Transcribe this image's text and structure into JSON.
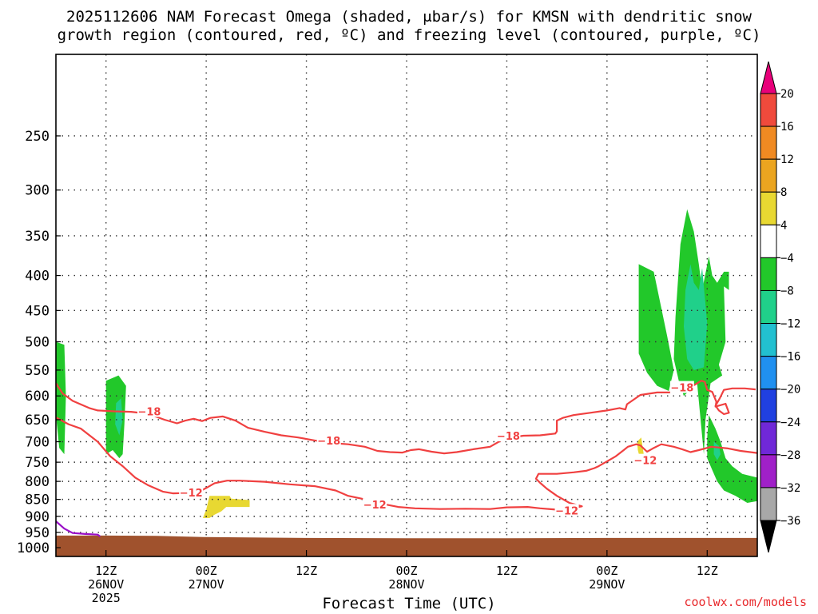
{
  "chart_data": {
    "type": "time-height cross section",
    "title_line1": "2025112606 NAM Forecast Omega (shaded, μbar/s) for KMSN with dendritic snow",
    "title_line2": "growth region (contoured, red, ºC) and freezing level (contoured, purple, ºC)",
    "xlabel": "Forecast Time (UTC)",
    "credit": "coolwx.com/models",
    "y_axis": {
      "scale": "log-pressure",
      "units": "hPa",
      "range": [
        1030,
        190
      ],
      "tick_labels": [
        "250",
        "300",
        "350",
        "400",
        "450",
        "500",
        "550",
        "600",
        "650",
        "700",
        "750",
        "800",
        "850",
        "900",
        "950",
        "1000"
      ],
      "grid": "dotted"
    },
    "x_axis": {
      "range_hours": [
        0,
        84
      ],
      "ticks": [
        {
          "hour": 6,
          "label1": "12Z",
          "label2": "26NOV",
          "label3": "2025"
        },
        {
          "hour": 18,
          "label1": "00Z",
          "label2": "27NOV",
          "label3": ""
        },
        {
          "hour": 30,
          "label1": "12Z",
          "label2": "",
          "label3": ""
        },
        {
          "hour": 42,
          "label1": "00Z",
          "label2": "28NOV",
          "label3": ""
        },
        {
          "hour": 54,
          "label1": "12Z",
          "label2": "",
          "label3": ""
        },
        {
          "hour": 66,
          "label1": "00Z",
          "label2": "29NOV",
          "label3": ""
        },
        {
          "hour": 78,
          "label1": "12Z",
          "label2": "",
          "label3": ""
        }
      ],
      "grid": "dotted"
    },
    "colorbar": {
      "labels": [
        "20",
        "16",
        "12",
        "8",
        "4",
        "−4",
        "−8",
        "−12",
        "−16",
        "−20",
        "−24",
        "−28",
        "−32",
        "−36"
      ],
      "colors": {
        "above_20": "#e8007a",
        "16_20": "#f04a3c",
        "12_16": "#f08a22",
        "8_12": "#eba520",
        "4_8": "#e8d832",
        "neg4_4": "#ffffff",
        "neg8_neg4": "#22c82a",
        "neg12_neg8": "#20d08a",
        "neg16_neg12": "#22c0d0",
        "neg20_neg16": "#2090f0",
        "neg24_neg20": "#2040e0",
        "neg28_neg24": "#7028d8",
        "neg32_neg28": "#a020c8",
        "neg36_neg32": "#a8a8a8",
        "below_neg36": "#000000"
      }
    },
    "omega_regions": [
      {
        "name": "green-early-left",
        "level": "-8..-4",
        "points": [
          [
            0.0,
            500
          ],
          [
            1.0,
            505
          ],
          [
            1.2,
            600
          ],
          [
            1.0,
            730
          ],
          [
            0.4,
            715
          ],
          [
            0.0,
            640
          ]
        ]
      },
      {
        "name": "green-early-12z",
        "level": "-8..-4",
        "points": [
          [
            6.0,
            570
          ],
          [
            7.5,
            560
          ],
          [
            8.4,
            580
          ],
          [
            8.2,
            660
          ],
          [
            8.0,
            730
          ],
          [
            7.6,
            740
          ],
          [
            6.8,
            720
          ],
          [
            6.0,
            730
          ]
        ]
      },
      {
        "name": "teal-early-12z",
        "level": "-12..-8",
        "points": [
          [
            7.2,
            615
          ],
          [
            7.8,
            605
          ],
          [
            8.0,
            650
          ],
          [
            7.6,
            685
          ],
          [
            7.1,
            660
          ]
        ]
      },
      {
        "name": "yellow-day2",
        "level": "4..8",
        "points": [
          [
            17.6,
            905
          ],
          [
            18.0,
            880
          ],
          [
            18.4,
            840
          ],
          [
            20.8,
            840
          ],
          [
            21.0,
            848
          ],
          [
            23.2,
            852
          ],
          [
            23.2,
            872
          ],
          [
            20.4,
            872
          ],
          [
            19.8,
            885
          ],
          [
            19.0,
            895
          ],
          [
            18.4,
            905
          ]
        ]
      },
      {
        "name": "yellow-small-29nov",
        "level": "4..8",
        "points": [
          [
            69.6,
            700
          ],
          [
            70.1,
            690
          ],
          [
            70.4,
            730
          ],
          [
            70.0,
            745
          ],
          [
            69.7,
            720
          ]
        ]
      },
      {
        "name": "green-upper-plume-a",
        "level": "-8..-4",
        "points": [
          [
            69.8,
            385
          ],
          [
            71.6,
            395
          ],
          [
            73.2,
            490
          ],
          [
            74.0,
            550
          ],
          [
            73.4,
            590
          ],
          [
            72.0,
            580
          ],
          [
            70.8,
            555
          ],
          [
            69.8,
            520
          ]
        ]
      },
      {
        "name": "green-upper-plume-b",
        "level": "-8..-4",
        "points": [
          [
            74.2,
            460
          ],
          [
            74.8,
            360
          ],
          [
            75.6,
            320
          ],
          [
            76.4,
            345
          ],
          [
            77.0,
            385
          ],
          [
            77.4,
            420
          ],
          [
            78.2,
            375
          ],
          [
            78.6,
            400
          ],
          [
            79.2,
            410
          ],
          [
            80.0,
            395
          ],
          [
            80.6,
            395
          ],
          [
            80.6,
            420
          ],
          [
            80.0,
            415
          ],
          [
            80.2,
            500
          ],
          [
            79.4,
            540
          ],
          [
            79.8,
            560
          ],
          [
            78.4,
            575
          ],
          [
            77.8,
            650
          ],
          [
            77.6,
            730
          ],
          [
            76.8,
            575
          ],
          [
            75.2,
            600
          ],
          [
            74.6,
            570
          ],
          [
            74.0,
            530
          ]
        ]
      },
      {
        "name": "teal-upper-plume",
        "level": "-12..-8",
        "points": [
          [
            75.4,
            420
          ],
          [
            76.0,
            385
          ],
          [
            76.4,
            410
          ],
          [
            77.0,
            420
          ],
          [
            77.4,
            390
          ],
          [
            78.0,
            470
          ],
          [
            77.6,
            545
          ],
          [
            76.4,
            550
          ],
          [
            75.6,
            530
          ],
          [
            75.2,
            475
          ]
        ]
      },
      {
        "name": "green-lower-right",
        "level": "-8..-4",
        "points": [
          [
            78.2,
            640
          ],
          [
            79.0,
            670
          ],
          [
            79.6,
            700
          ],
          [
            80.2,
            740
          ],
          [
            81.0,
            760
          ],
          [
            82.2,
            780
          ],
          [
            84.0,
            790
          ],
          [
            84.0,
            855
          ],
          [
            82.8,
            860
          ],
          [
            81.4,
            840
          ],
          [
            80.0,
            825
          ],
          [
            79.2,
            800
          ],
          [
            78.6,
            770
          ],
          [
            78.0,
            740
          ],
          [
            78.0,
            690
          ]
        ]
      },
      {
        "name": "teal-lower-right",
        "level": "-12..-8",
        "points": [
          [
            78.8,
            700
          ],
          [
            79.4,
            710
          ],
          [
            79.6,
            730
          ],
          [
            79.2,
            745
          ],
          [
            78.8,
            730
          ]
        ]
      }
    ],
    "contours": [
      {
        "name": "minus-18-contour",
        "color": "#f04040",
        "label": "−18",
        "points": [
          [
            0,
            575
          ],
          [
            0.8,
            595
          ],
          [
            2.0,
            610
          ],
          [
            4.0,
            625
          ],
          [
            5.0,
            630
          ],
          [
            7.0,
            632
          ],
          [
            9.0,
            633
          ],
          [
            11.0,
            637
          ],
          [
            13.0,
            650
          ],
          [
            14.5,
            658
          ],
          [
            15.5,
            652
          ],
          [
            16.5,
            648
          ],
          [
            17.5,
            653
          ],
          [
            18.5,
            646
          ],
          [
            20.0,
            643
          ],
          [
            21.5,
            652
          ],
          [
            23.0,
            668
          ],
          [
            25.0,
            677
          ],
          [
            27.0,
            685
          ],
          [
            29.0,
            690
          ],
          [
            31.0,
            697
          ],
          [
            33.0,
            703
          ],
          [
            35.0,
            706
          ],
          [
            37.0,
            712
          ],
          [
            38.5,
            722
          ],
          [
            40.0,
            725
          ],
          [
            41.5,
            726
          ],
          [
            42.5,
            720
          ],
          [
            43.5,
            718
          ],
          [
            45.0,
            724
          ],
          [
            46.5,
            728
          ],
          [
            48.0,
            725
          ],
          [
            50.0,
            718
          ],
          [
            52.0,
            712
          ],
          [
            53.5,
            695
          ],
          [
            54.5,
            690
          ],
          [
            56.0,
            686
          ],
          [
            58.0,
            685
          ],
          [
            59.8,
            681
          ],
          [
            60.0,
            676
          ],
          [
            60.0,
            652
          ],
          [
            60.7,
            646
          ],
          [
            62.0,
            640
          ],
          [
            64.0,
            635
          ],
          [
            66.0,
            630
          ],
          [
            67.5,
            625
          ],
          [
            68.2,
            628
          ],
          [
            68.4,
            617
          ],
          [
            70.0,
            598
          ],
          [
            72.0,
            593
          ],
          [
            73.5,
            593
          ],
          [
            74.6,
            586
          ],
          [
            75.4,
            585
          ],
          [
            76.0,
            580
          ],
          [
            76.5,
            578
          ],
          [
            77.3,
            570
          ],
          [
            77.7,
            572
          ],
          [
            78.0,
            588
          ],
          [
            78.6,
            592
          ],
          [
            79.1,
            612
          ],
          [
            79.0,
            622
          ],
          [
            80.2,
            616
          ],
          [
            80.6,
            635
          ],
          [
            80.0,
            638
          ],
          [
            79.4,
            630
          ],
          [
            79.0,
            620
          ],
          [
            79.5,
            605
          ],
          [
            80.0,
            588
          ],
          [
            81.0,
            585
          ],
          [
            82.5,
            585
          ],
          [
            83.8,
            587
          ]
        ]
      },
      {
        "name": "minus-12-contour",
        "color": "#f04040",
        "label": "−12",
        "points": [
          [
            0,
            645
          ],
          [
            1.5,
            660
          ],
          [
            3.0,
            670
          ],
          [
            5.0,
            700
          ],
          [
            6.5,
            735
          ],
          [
            8.0,
            760
          ],
          [
            9.5,
            790
          ],
          [
            11.0,
            810
          ],
          [
            12.8,
            828
          ],
          [
            14.0,
            833
          ],
          [
            15.5,
            832
          ],
          [
            17.0,
            830
          ],
          [
            18.0,
            818
          ],
          [
            19.0,
            805
          ],
          [
            20.5,
            798
          ],
          [
            22.0,
            798
          ],
          [
            25.0,
            801
          ],
          [
            28.0,
            808
          ],
          [
            31.0,
            813
          ],
          [
            33.5,
            825
          ],
          [
            35.0,
            840
          ],
          [
            37.0,
            850
          ],
          [
            38.0,
            857
          ],
          [
            39.5,
            865
          ],
          [
            41.0,
            872
          ],
          [
            43.0,
            876
          ],
          [
            46.0,
            878
          ],
          [
            49.0,
            877
          ],
          [
            52.0,
            878
          ],
          [
            54.0,
            873
          ],
          [
            56.5,
            872
          ],
          [
            58.0,
            876
          ],
          [
            60.0,
            880
          ],
          [
            62.0,
            875
          ],
          [
            63.0,
            870
          ],
          [
            61.5,
            860
          ],
          [
            60.0,
            840
          ],
          [
            58.8,
            820
          ],
          [
            58.0,
            804
          ],
          [
            57.5,
            793
          ],
          [
            57.8,
            780
          ],
          [
            60.0,
            780
          ],
          [
            62.0,
            776
          ],
          [
            63.5,
            772
          ],
          [
            64.5,
            765
          ],
          [
            65.0,
            760
          ],
          [
            66.0,
            748
          ],
          [
            67.0,
            736
          ],
          [
            68.0,
            720
          ],
          [
            68.5,
            712
          ],
          [
            69.5,
            706
          ],
          [
            70.0,
            709
          ],
          [
            70.8,
            724
          ],
          [
            71.5,
            716
          ],
          [
            72.5,
            706
          ],
          [
            74.0,
            712
          ],
          [
            75.0,
            718
          ],
          [
            76.0,
            725
          ],
          [
            77.0,
            720
          ],
          [
            78.5,
            712
          ],
          [
            80.5,
            716
          ],
          [
            82.0,
            722
          ],
          [
            84.0,
            727
          ]
        ]
      },
      {
        "name": "freezing-level-contour",
        "color": "#9a10c8",
        "label": "",
        "points": [
          [
            0,
            915
          ],
          [
            1.0,
            938
          ],
          [
            2.0,
            952
          ],
          [
            3.5,
            955
          ],
          [
            5.0,
            957
          ],
          [
            5.3,
            963
          ]
        ]
      }
    ],
    "contour_labels": [
      {
        "text": "−18",
        "hour": 11.0,
        "p": 632
      },
      {
        "text": "−18",
        "hour": 32.5,
        "p": 697
      },
      {
        "text": "−18",
        "hour": 54.0,
        "p": 686
      },
      {
        "text": "−18",
        "hour": 74.8,
        "p": 583
      },
      {
        "text": "−12",
        "hour": 16.0,
        "p": 830
      },
      {
        "text": "−12",
        "hour": 38.0,
        "p": 865
      },
      {
        "text": "−12",
        "hour": 61.0,
        "p": 882
      },
      {
        "text": "−12",
        "hour": 70.4,
        "p": 745
      }
    ],
    "terrain": {
      "color": "#a0522d",
      "surface": [
        [
          0,
          960
        ],
        [
          6,
          960
        ],
        [
          12,
          961
        ],
        [
          18,
          965
        ],
        [
          30,
          968
        ],
        [
          42,
          969
        ],
        [
          54,
          969
        ],
        [
          66,
          968
        ],
        [
          78,
          968
        ],
        [
          84,
          968
        ]
      ]
    }
  }
}
